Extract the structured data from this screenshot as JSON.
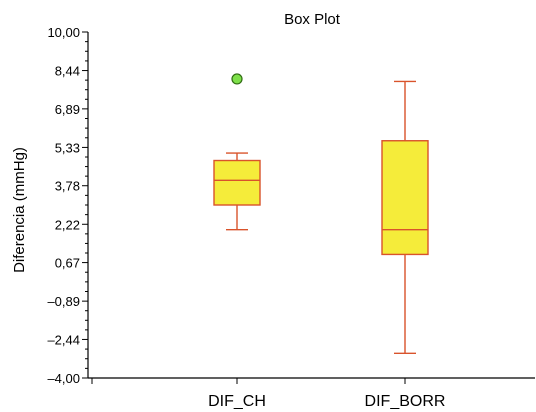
{
  "chart_data": {
    "type": "box",
    "title": "Box Plot",
    "ylabel": "Diferencia (mmHg)",
    "xlabel": "",
    "ylim": [
      -4.0,
      10.0
    ],
    "yticks": [
      "10,00",
      "8,44",
      "6,89",
      "5,33",
      "3,78",
      "2,22",
      "0,67",
      "–0,89",
      "–2,44",
      "–4,00"
    ],
    "ytick_values": [
      10.0,
      8.44,
      6.89,
      5.33,
      3.78,
      2.22,
      0.67,
      -0.89,
      -2.44,
      -4.0
    ],
    "categories": [
      "DIF_CH",
      "DIF_BORR"
    ],
    "boxes": [
      {
        "category": "DIF_CH",
        "whisker_low": 2.0,
        "q1": 3.0,
        "median": 4.0,
        "q3": 4.8,
        "whisker_high": 5.1,
        "outliers": [
          8.1
        ]
      },
      {
        "category": "DIF_BORR",
        "whisker_low": -3.0,
        "q1": 1.0,
        "median": 2.0,
        "q3": 5.6,
        "whisker_high": 8.0,
        "outliers": []
      }
    ],
    "grid": false,
    "colors": {
      "box_fill": "#f5ec3a",
      "box_stroke": "#d9532b",
      "outlier_fill": "#7ee04a",
      "outlier_stroke": "#2f6b12",
      "axis": "#000000"
    }
  }
}
